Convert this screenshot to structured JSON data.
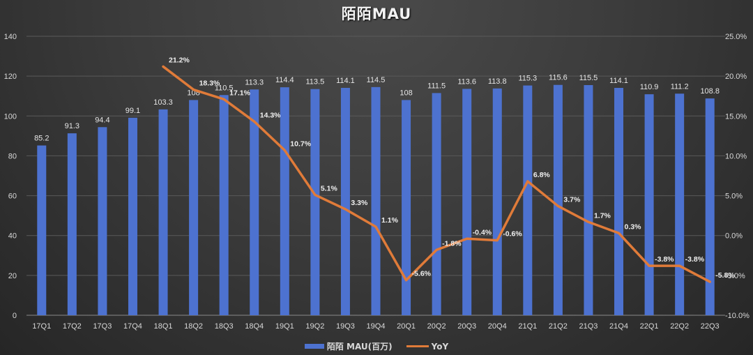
{
  "chart_data": {
    "type": "bar+line",
    "title": "陌陌MAU",
    "categories": [
      "17Q1",
      "17Q2",
      "17Q3",
      "17Q4",
      "18Q1",
      "18Q2",
      "18Q3",
      "18Q4",
      "19Q1",
      "19Q2",
      "19Q3",
      "19Q4",
      "20Q1",
      "20Q2",
      "20Q3",
      "20Q4",
      "21Q1",
      "21Q2",
      "21Q3",
      "21Q4",
      "22Q1",
      "22Q2",
      "22Q3"
    ],
    "series": [
      {
        "name": "陌陌 MAU(百万)",
        "type": "bar",
        "axis": "left",
        "color": "#4d72d0",
        "values": [
          85.2,
          91.3,
          94.4,
          99.1,
          103.3,
          108,
          110.5,
          113.3,
          114.4,
          113.5,
          114.1,
          114.5,
          108,
          111.5,
          113.6,
          113.8,
          115.3,
          115.6,
          115.5,
          114.1,
          110.9,
          111.2,
          108.8
        ],
        "labels": [
          "85.2",
          "91.3",
          "94.4",
          "99.1",
          "103.3",
          "108",
          "110.5",
          "113.3",
          "114.4",
          "113.5",
          "114.1",
          "114.5",
          "108",
          "111.5",
          "113.6",
          "113.8",
          "115.3",
          "115.6",
          "115.5",
          "114.1",
          "110.9",
          "111.2",
          "108.8"
        ]
      },
      {
        "name": "YoY",
        "type": "line",
        "axis": "right",
        "color": "#e07b39",
        "values": [
          null,
          null,
          null,
          null,
          21.2,
          18.3,
          17.1,
          14.3,
          10.7,
          5.1,
          3.3,
          1.1,
          -5.6,
          -1.8,
          -0.4,
          -0.6,
          6.8,
          3.7,
          1.7,
          0.3,
          -3.8,
          -3.8,
          -5.8
        ],
        "labels": [
          null,
          null,
          null,
          null,
          "21.2%",
          "18.3%",
          "17.1%",
          "14.3%",
          "10.7%",
          "5.1%",
          "3.3%",
          "1.1%",
          "-5.6%",
          "-1.8%",
          "-0.4%",
          "-0.6%",
          "6.8%",
          "3.7%",
          "1.7%",
          "0.3%",
          "-3.8%",
          "-3.8%",
          "-5.8%"
        ]
      }
    ],
    "y_left": {
      "ylim": [
        0,
        140
      ],
      "ticks": [
        0,
        20,
        40,
        60,
        80,
        100,
        120,
        140
      ],
      "tick_labels": [
        "0",
        "20",
        "40",
        "60",
        "80",
        "100",
        "120",
        "140"
      ]
    },
    "y_right": {
      "ylim": [
        -10,
        25
      ],
      "ticks": [
        -10,
        -5,
        0,
        5,
        10,
        15,
        20,
        25
      ],
      "tick_labels": [
        "-10.0%",
        "-5.0%",
        "0.0%",
        "5.0%",
        "10.0%",
        "15.0%",
        "20.0%",
        "25.0%"
      ]
    },
    "xlabel": "",
    "ylabel": "",
    "grid": true,
    "legend_position": "bottom"
  },
  "legend": {
    "bar_label": "陌陌 MAU(百万)",
    "line_label": "YoY"
  }
}
